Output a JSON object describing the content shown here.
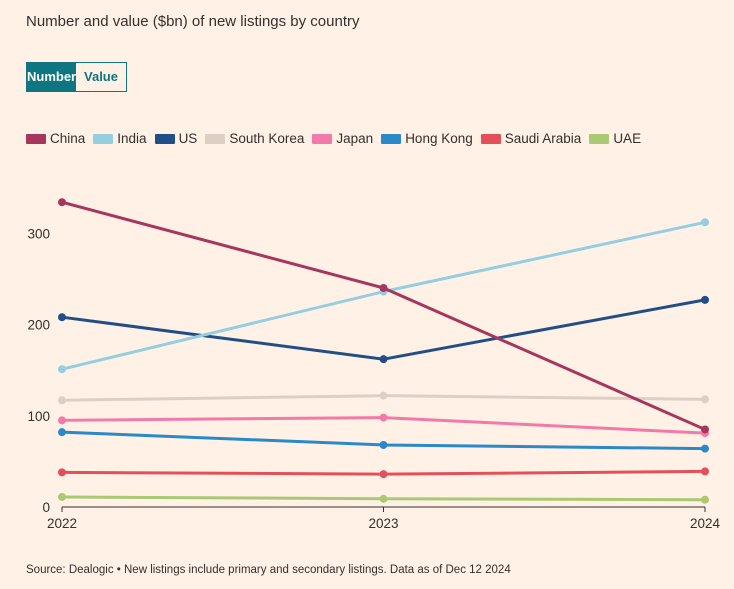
{
  "title": "Number and value ($bn) of new listings by country",
  "toggle": {
    "number_label": "Number",
    "value_label": "Value",
    "selected": "Number"
  },
  "source": "Source: Dealogic • New listings include primary and secondary listings. Data as of Dec 12 2024",
  "chart_data": {
    "type": "line",
    "x": [
      "2022",
      "2023",
      "2024"
    ],
    "ylim": [
      0,
      350
    ],
    "yticks": [
      "0",
      "100",
      "200",
      "300"
    ],
    "grid": false,
    "legend_position": "top-left",
    "series": [
      {
        "name": "China",
        "color": "#a6365d",
        "values": [
          334,
          240,
          85
        ]
      },
      {
        "name": "India",
        "color": "#96cee1",
        "values": [
          151,
          236,
          312
        ]
      },
      {
        "name": "US",
        "color": "#214e87",
        "values": [
          208,
          162,
          227
        ]
      },
      {
        "name": "South Korea",
        "color": "#dccfc6",
        "values": [
          117,
          122,
          118
        ]
      },
      {
        "name": "Japan",
        "color": "#f27aa9",
        "values": [
          95,
          98,
          81
        ]
      },
      {
        "name": "Hong Kong",
        "color": "#2a89c9",
        "values": [
          82,
          68,
          64
        ]
      },
      {
        "name": "Saudi Arabia",
        "color": "#e4505a",
        "values": [
          38,
          36,
          39
        ]
      },
      {
        "name": "UAE",
        "color": "#a9c973",
        "values": [
          11,
          9,
          8
        ]
      }
    ]
  }
}
